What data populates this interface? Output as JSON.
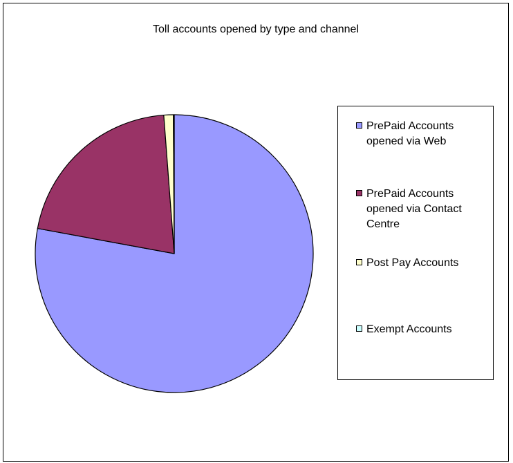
{
  "chart_data": {
    "type": "pie",
    "title": "Toll accounts opened by type and channel",
    "legend_position": "right",
    "categories": [
      "PrePaid Accounts opened via Web",
      "PrePaid Accounts opened via Contact Centre",
      "Post Pay Accounts",
      "Exempt Accounts"
    ],
    "values": [
      77.9,
      20.9,
      1.1,
      0.1
    ],
    "value_units": "percent (estimated)",
    "colors": [
      "#9999ff",
      "#993366",
      "#ffffcc",
      "#ccffff"
    ]
  }
}
